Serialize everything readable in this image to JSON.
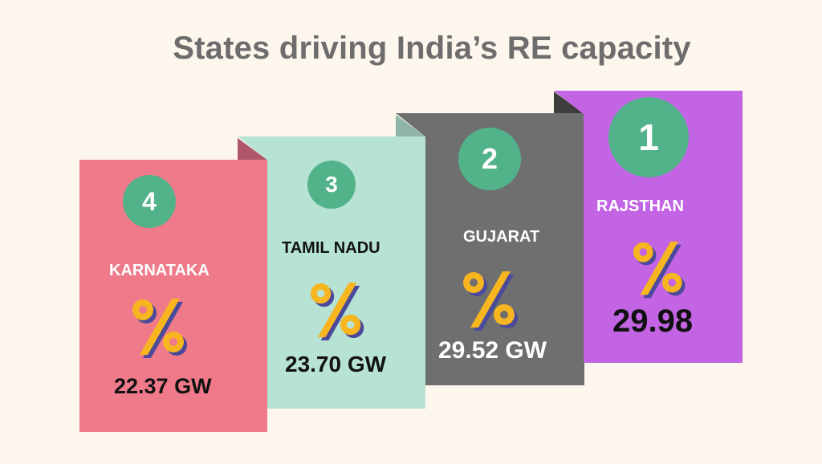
{
  "title": "States driving India’s RE capacity",
  "colors": {
    "background": "#fdf6ec",
    "badge": "#52b28a",
    "percent_icon_fill": "#f7b520",
    "percent_icon_shadow": "#4b4a9a"
  },
  "cards": [
    {
      "rank": "1",
      "state": "RAJSTHAN",
      "value": "29.98",
      "color": "#c264e3"
    },
    {
      "rank": "2",
      "state": "GUJARAT",
      "value": "29.52 GW",
      "color": "#6f6f6f"
    },
    {
      "rank": "3",
      "state": "TAMIL NADU",
      "value": "23.70 GW",
      "color": "#b6e3d4"
    },
    {
      "rank": "4",
      "state": "KARNATAKA",
      "value": "22.37 GW",
      "color": "#ef7a8a"
    }
  ],
  "icon": "percent-icon"
}
